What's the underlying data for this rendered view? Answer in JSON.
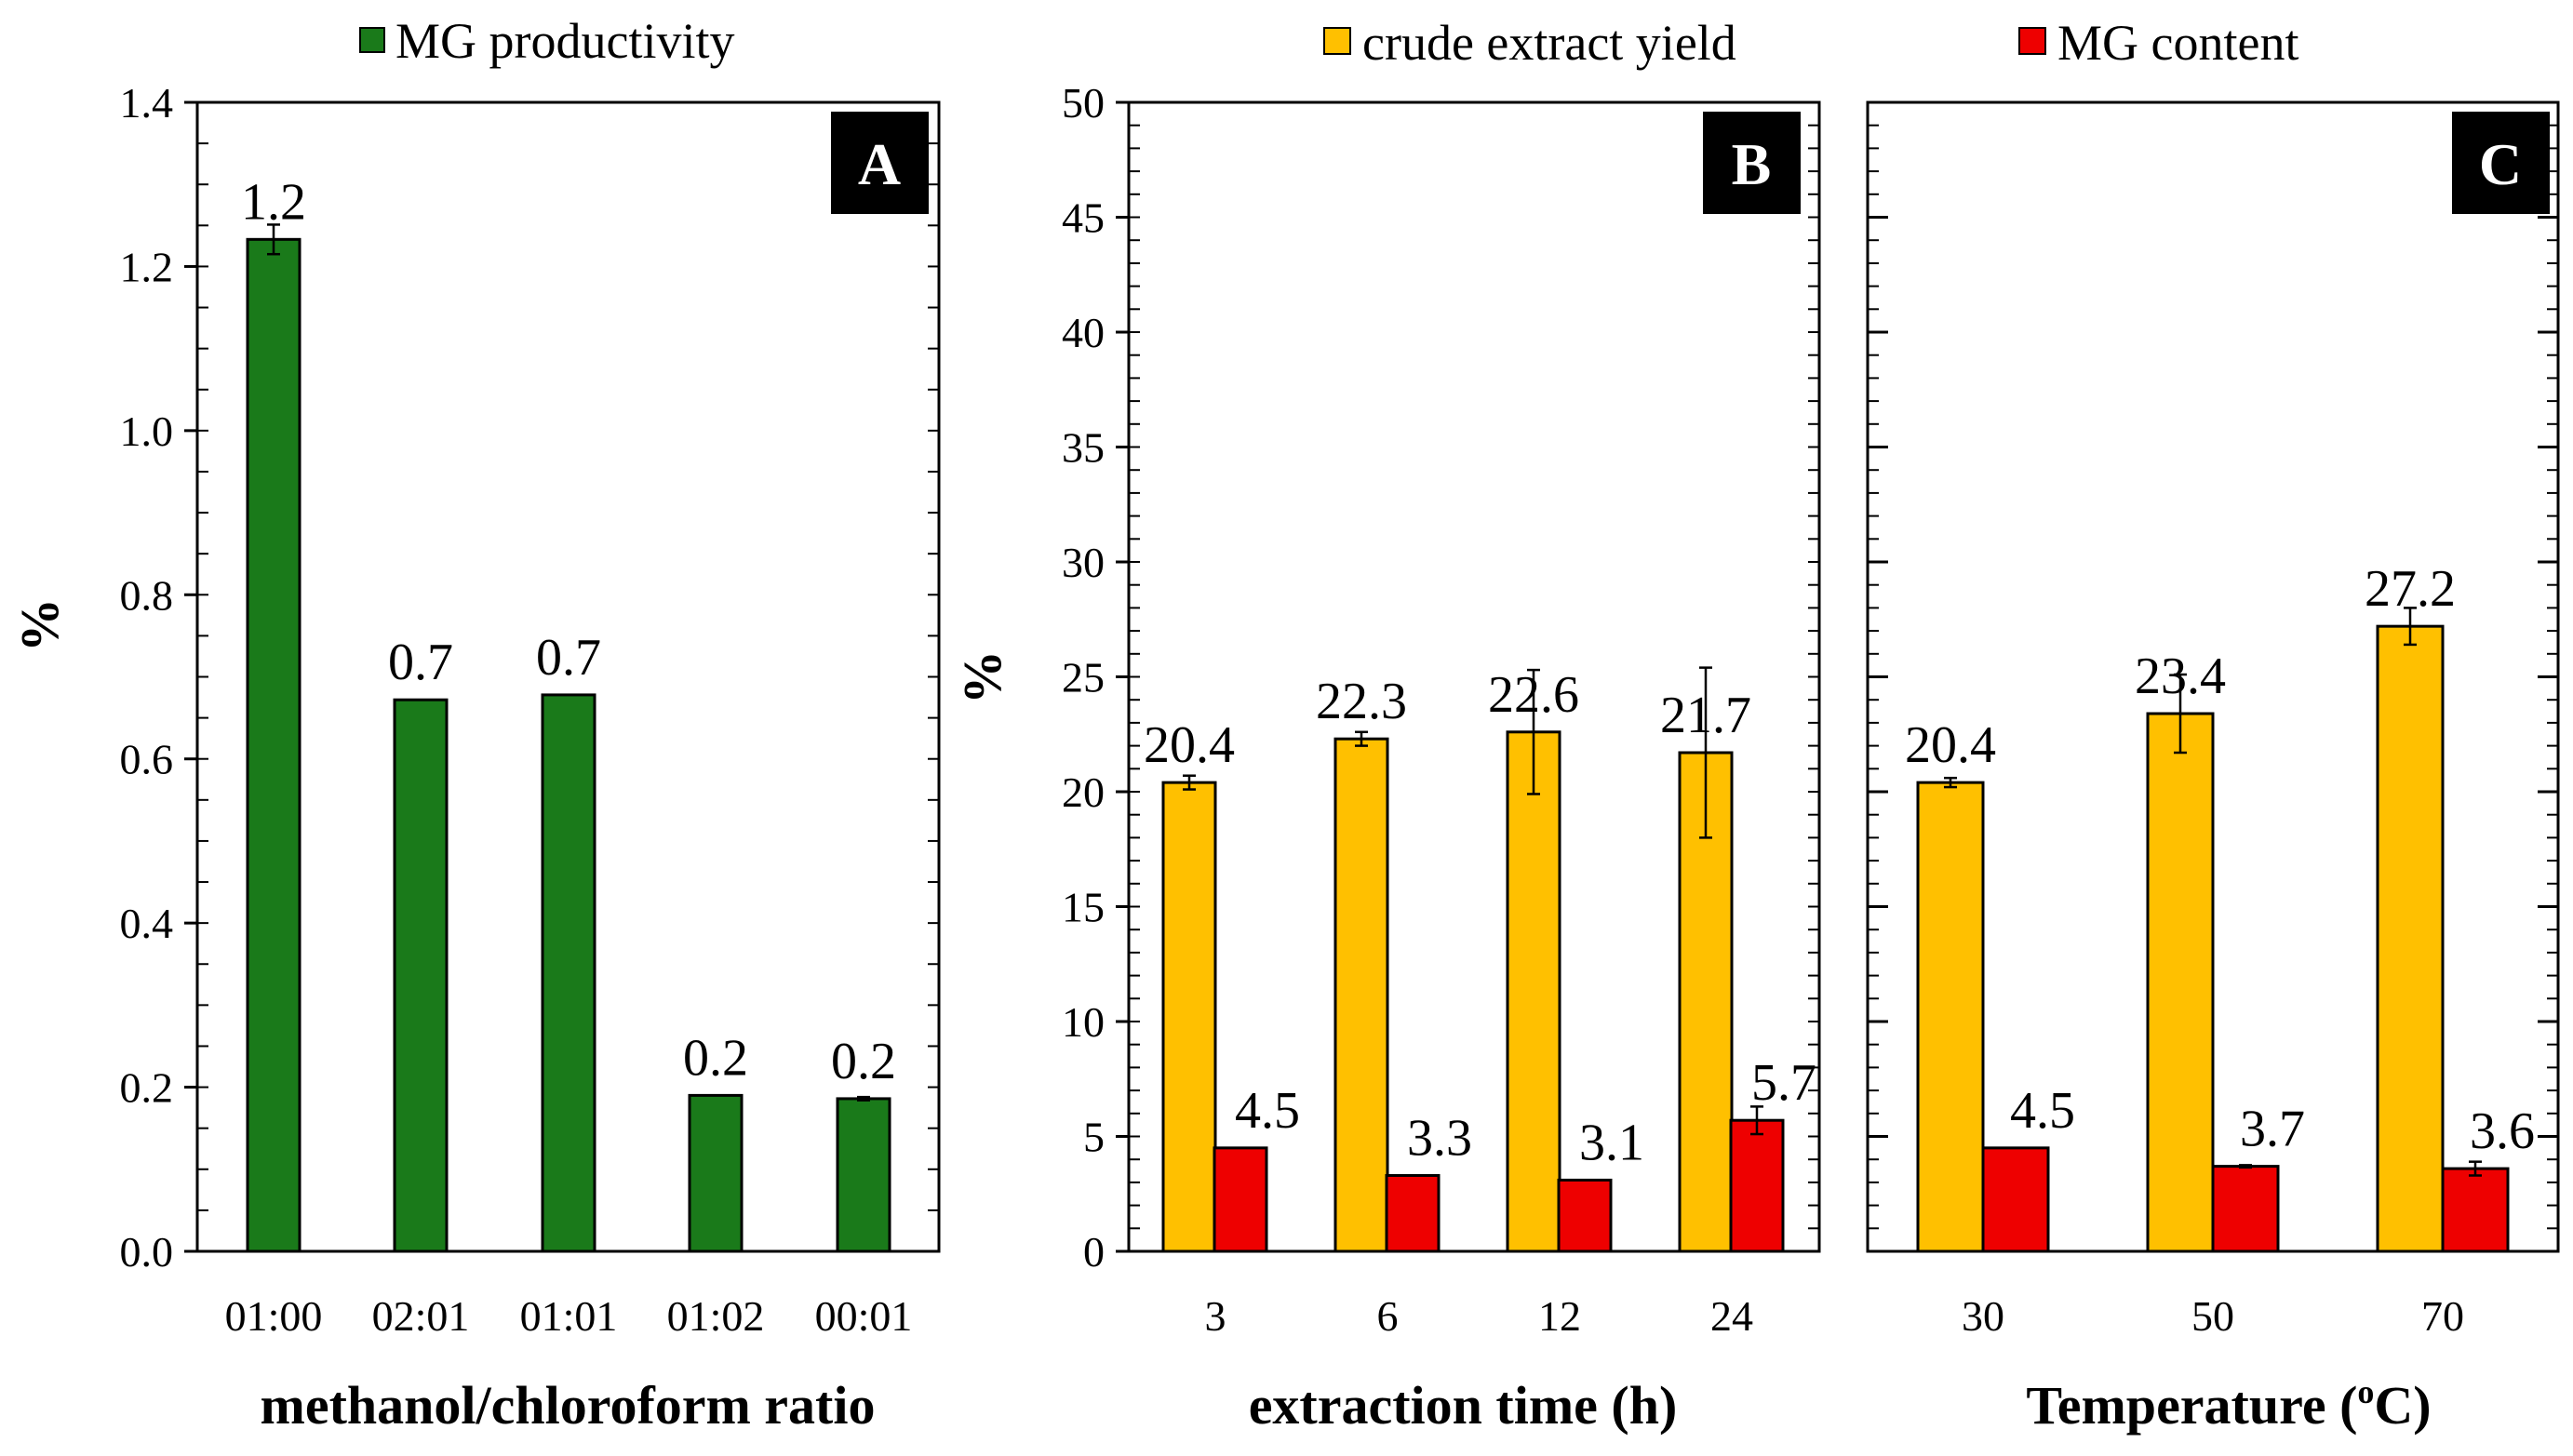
{
  "chart_data": [
    {
      "panel": "A",
      "type": "bar",
      "legend": [
        {
          "name": "MG productivity",
          "color": "#1a7a1a"
        }
      ],
      "categories": [
        "01:00",
        "02:01",
        "01:01",
        "01:02",
        "00:01"
      ],
      "series": [
        {
          "name": "MG productivity",
          "color": "#1a7a1a",
          "values": [
            1.233,
            0.672,
            0.678,
            0.19,
            0.186
          ],
          "errors": [
            0.018,
            0.0,
            0.0,
            0.0,
            0.002
          ],
          "labels": [
            "1.2",
            "0.7",
            "0.7",
            "0.2",
            "0.2"
          ]
        }
      ],
      "ylim": [
        0,
        1.4
      ],
      "yticks": [
        "0.0",
        "0.2",
        "0.4",
        "0.6",
        "0.8",
        "1.0",
        "1.2",
        "1.4"
      ],
      "ylabel": "%",
      "xlabel": "methanol/chloroform ratio"
    },
    {
      "panel": "B",
      "type": "bar",
      "categories": [
        "3",
        "6",
        "12",
        "24"
      ],
      "series": [
        {
          "name": "crude extract yield",
          "color": "#ffc000",
          "values": [
            20.4,
            22.3,
            22.6,
            21.7
          ],
          "errors": [
            0.3,
            0.3,
            2.7,
            3.7
          ],
          "labels": [
            "20.4",
            "22.3",
            "22.6",
            "21.7"
          ]
        },
        {
          "name": "MG content",
          "color": "#ee0000",
          "values": [
            4.5,
            3.3,
            3.1,
            5.7
          ],
          "errors": [
            0.0,
            0.0,
            0.0,
            0.6
          ],
          "labels": [
            "4.5",
            "3.3",
            "3.1",
            "5.7"
          ]
        }
      ],
      "ylim": [
        0,
        50
      ],
      "yticks": [
        "0",
        "5",
        "10",
        "15",
        "20",
        "25",
        "30",
        "35",
        "40",
        "45",
        "50"
      ],
      "ylabel": "%",
      "xlabel": "extraction time (h)"
    },
    {
      "panel": "C",
      "type": "bar",
      "categories": [
        "30",
        "50",
        "70"
      ],
      "series": [
        {
          "name": "crude extract yield",
          "color": "#ffc000",
          "values": [
            20.4,
            23.4,
            27.2
          ],
          "errors": [
            0.2,
            1.7,
            0.8
          ],
          "labels": [
            "20.4",
            "23.4",
            "27.2"
          ]
        },
        {
          "name": "MG content",
          "color": "#ee0000",
          "values": [
            4.5,
            3.7,
            3.6
          ],
          "errors": [
            0.0,
            0.05,
            0.3
          ],
          "labels": [
            "4.5",
            "3.7",
            "3.6"
          ]
        }
      ],
      "ylim": [
        0,
        50
      ],
      "xlabel": "Temperature (",
      "xlabel_sup": "o",
      "xlabel_tail": "C)"
    }
  ],
  "legend_bc": [
    {
      "name": "crude extract yield",
      "color": "#ffc000"
    },
    {
      "name": "MG content",
      "color": "#ee0000"
    }
  ]
}
